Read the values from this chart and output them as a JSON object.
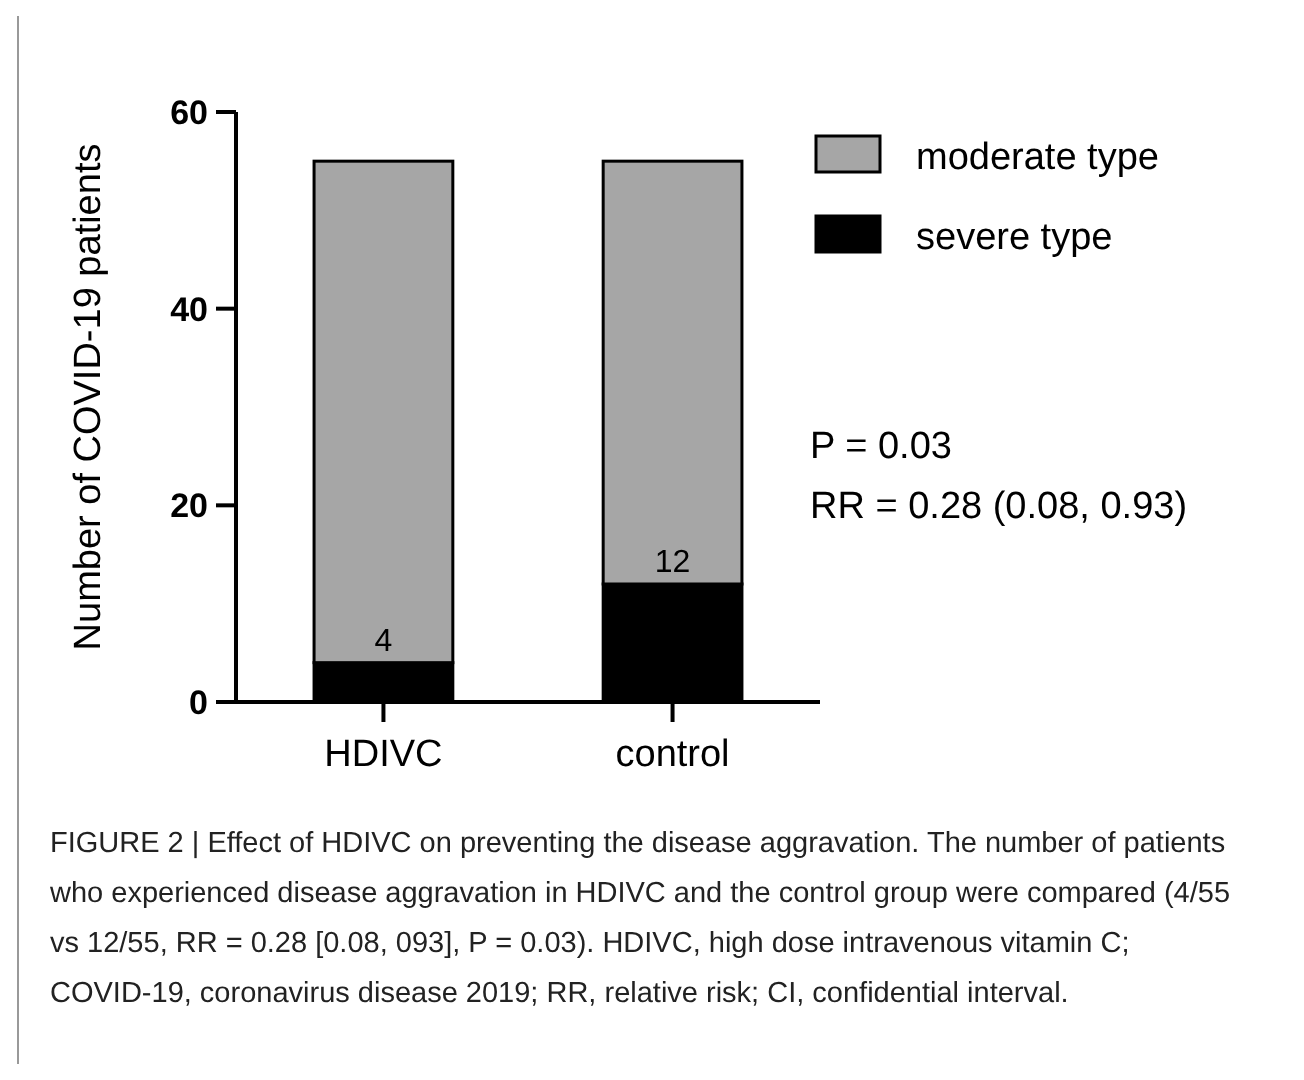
{
  "chart_data": {
    "type": "bar",
    "stacked": true,
    "categories": [
      "HDIVC",
      "control"
    ],
    "series": [
      {
        "name": "severe type",
        "color": "#000000",
        "values": [
          4,
          12
        ],
        "value_labels": [
          "4",
          "12"
        ]
      },
      {
        "name": "moderate type",
        "color": "#a6a6a6",
        "values": [
          51,
          43
        ]
      }
    ],
    "ylabel": "Number of COVID-19 patients",
    "ylim": [
      0,
      60
    ],
    "yticks": [
      0,
      20,
      40,
      60
    ],
    "grid": false,
    "legend": "top right",
    "annotations": [
      "P = 0.03",
      "RR = 0.28 (0.08, 0.93)",
      "FIGURE 2 | Effect of HDIVC on preventing the disease aggravation. The number of patients who experienced disease aggravation in HDIVC and the control group were compared (4/55 vs 12/55, RR = 0.28 [0.08, 093], P = 0.03). HDIVC, high dose intravenous vitamin C; COVID-19, coronavirus disease 2019; RR, relative risk; CI, confidential interval."
    ]
  }
}
